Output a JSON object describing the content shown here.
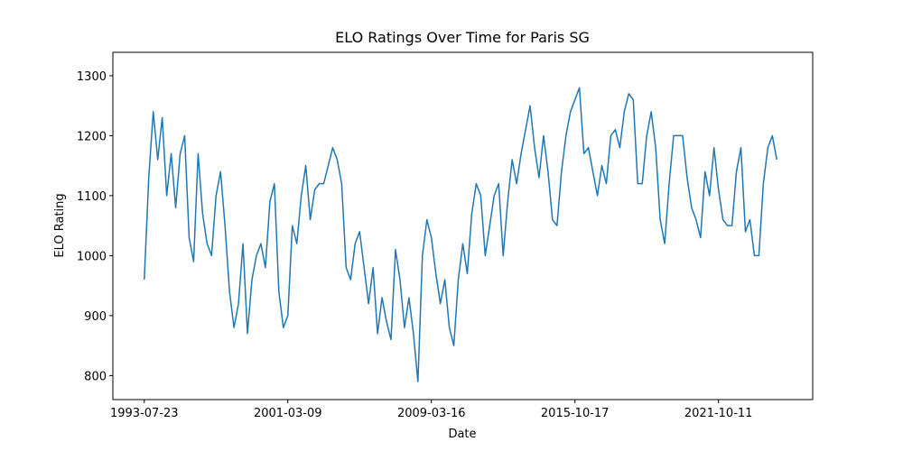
{
  "chart_data": {
    "type": "line",
    "title": "ELO Ratings Over Time for Paris SG",
    "x_label": "Date",
    "y_label": "ELO Rating",
    "x": [
      0,
      1,
      2,
      3,
      4,
      5,
      6,
      7,
      8,
      9,
      10,
      11,
      12,
      13,
      14,
      15,
      16,
      17,
      18,
      19,
      20,
      21,
      22,
      23,
      24,
      25,
      26,
      27,
      28,
      29,
      30,
      31,
      32,
      33,
      34,
      35,
      36,
      37,
      38,
      39,
      40,
      41,
      42,
      43,
      44,
      45,
      46,
      47,
      48,
      49,
      50,
      51,
      52,
      53,
      54,
      55,
      56,
      57,
      58,
      59,
      60,
      61,
      62,
      63,
      64,
      65,
      66,
      67,
      68,
      69,
      70,
      71,
      72,
      73,
      74,
      75,
      76,
      77,
      78,
      79,
      80,
      81,
      82,
      83,
      84,
      85,
      86,
      87,
      88,
      89,
      90,
      91,
      92,
      93,
      94,
      95,
      96,
      97,
      98,
      99,
      100,
      101,
      102,
      103,
      104,
      105,
      106,
      107,
      108,
      109,
      110,
      111,
      112,
      113,
      114,
      115,
      116,
      117,
      118,
      119,
      120,
      121,
      122,
      123,
      124,
      125,
      126,
      127,
      128,
      129,
      130,
      131,
      132,
      133,
      134,
      135,
      136,
      137,
      138,
      139,
      140,
      141
    ],
    "series": [
      {
        "name": "Paris SG",
        "color": "#1f77b4",
        "values": [
          960,
          1130,
          1240,
          1160,
          1230,
          1100,
          1170,
          1080,
          1170,
          1200,
          1030,
          990,
          1170,
          1070,
          1020,
          1000,
          1100,
          1140,
          1050,
          940,
          880,
          920,
          1020,
          870,
          960,
          1000,
          1020,
          980,
          1090,
          1120,
          940,
          880,
          900,
          1050,
          1020,
          1100,
          1150,
          1060,
          1110,
          1120,
          1120,
          1150,
          1180,
          1160,
          1120,
          980,
          960,
          1020,
          1040,
          980,
          920,
          980,
          870,
          930,
          890,
          860,
          1010,
          960,
          880,
          930,
          870,
          790,
          1000,
          1060,
          1030,
          970,
          920,
          960,
          880,
          850,
          960,
          1020,
          970,
          1070,
          1120,
          1100,
          1000,
          1050,
          1100,
          1120,
          1000,
          1090,
          1160,
          1120,
          1170,
          1210,
          1250,
          1180,
          1130,
          1200,
          1140,
          1060,
          1050,
          1140,
          1200,
          1240,
          1260,
          1280,
          1170,
          1180,
          1140,
          1100,
          1150,
          1120,
          1200,
          1210,
          1180,
          1240,
          1270,
          1260,
          1120,
          1120,
          1200,
          1240,
          1180,
          1060,
          1020,
          1120,
          1200,
          1200,
          1200,
          1130,
          1080,
          1060,
          1030,
          1140,
          1100,
          1180,
          1110,
          1060,
          1050,
          1050,
          1140,
          1180,
          1040,
          1060,
          1000,
          1000,
          1120,
          1180,
          1200,
          1160
        ]
      }
    ],
    "xlim": [
      -7,
      149
    ],
    "xticks": [
      {
        "value": 0,
        "label": "1993-07-23"
      },
      {
        "value": 32,
        "label": "2001-03-09"
      },
      {
        "value": 64,
        "label": "2009-03-16"
      },
      {
        "value": 96,
        "label": "2015-10-17"
      },
      {
        "value": 128,
        "label": "2021-10-11"
      }
    ],
    "ylim": [
      760,
      1339
    ],
    "yticks": [
      800,
      900,
      1000,
      1100,
      1200,
      1300
    ]
  }
}
